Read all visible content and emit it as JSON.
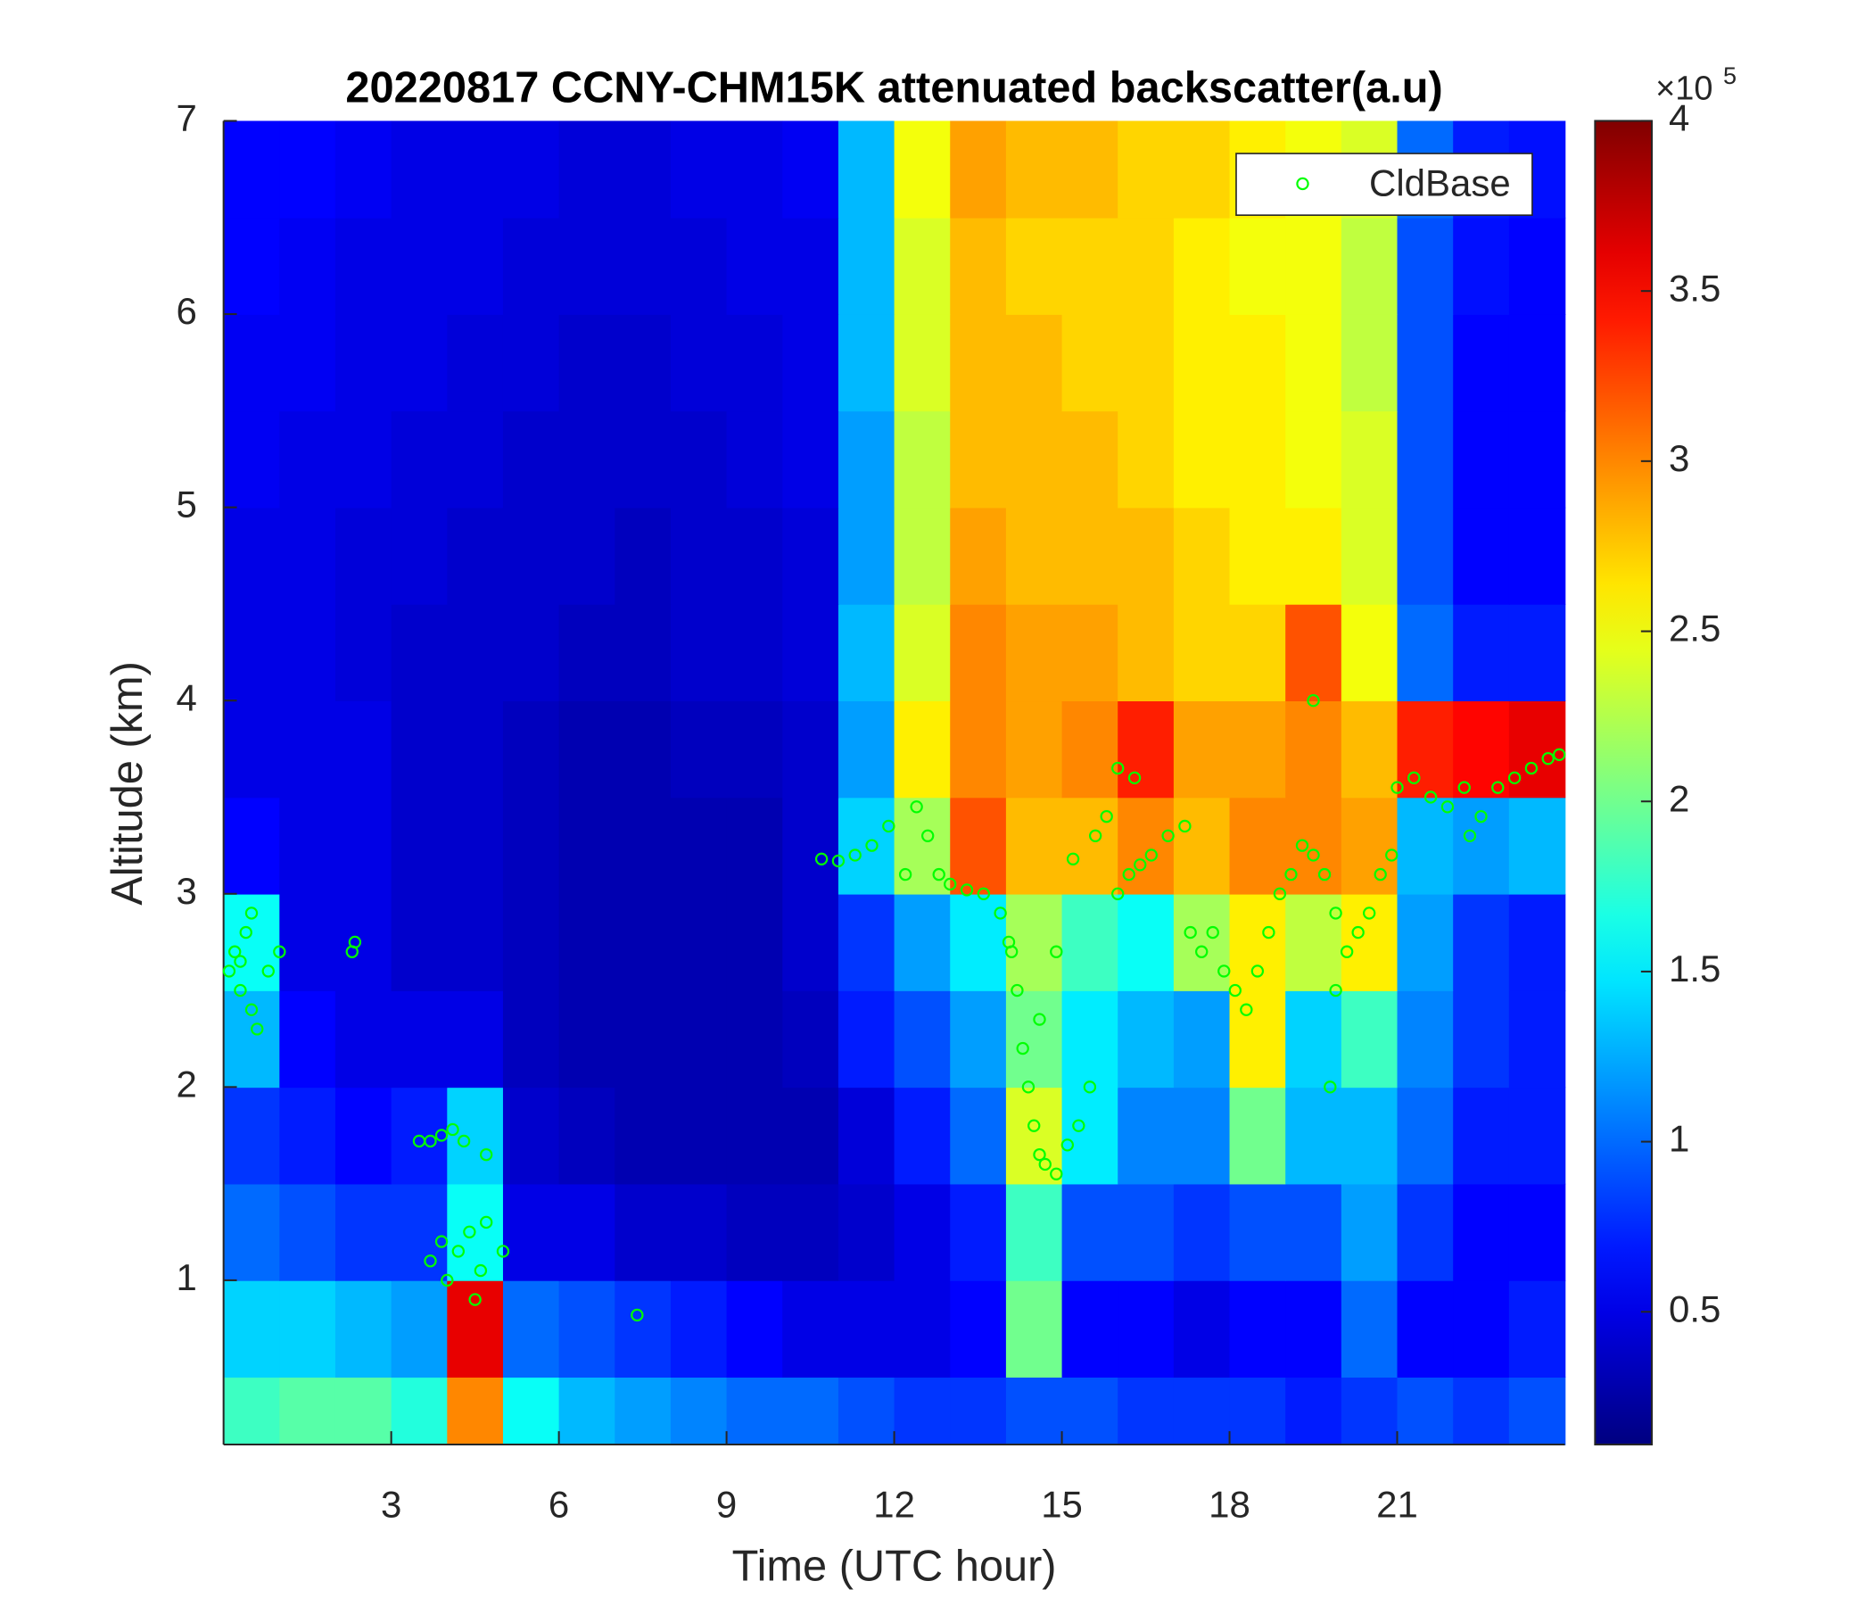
{
  "chart_data": {
    "type": "heatmap",
    "title": "20220817 CCNY-CHM15K attenuated backscatter(a.u)",
    "xlabel": "Time (UTC hour)",
    "ylabel": "Altitude (km)",
    "xlim": [
      0,
      24
    ],
    "ylim": [
      0.15,
      7
    ],
    "xticks": [
      3,
      6,
      9,
      12,
      15,
      18,
      21
    ],
    "yticks": [
      1,
      2,
      3,
      4,
      5,
      6,
      7
    ],
    "x_edges": [
      0,
      1,
      2,
      3,
      4,
      5,
      6,
      7,
      8,
      9,
      10,
      11,
      12,
      13,
      14,
      15,
      16,
      17,
      18,
      19,
      20,
      21,
      22,
      23,
      24
    ],
    "y_edges": [
      0.15,
      0.5,
      1,
      1.5,
      2,
      2.5,
      3,
      3.5,
      4,
      4.5,
      5,
      5.5,
      6,
      6.5,
      7
    ],
    "values": [
      [
        1.8,
        1.9,
        1.9,
        1.7,
        3.0,
        1.6,
        1.3,
        1.2,
        1.1,
        1.0,
        1.0,
        0.9,
        0.8,
        0.8,
        0.9,
        0.9,
        0.8,
        0.8,
        0.8,
        0.7,
        0.8,
        0.9,
        0.8,
        0.9
      ],
      [
        1.4,
        1.4,
        1.3,
        1.2,
        3.6,
        1.0,
        0.9,
        0.8,
        0.7,
        0.6,
        0.5,
        0.5,
        0.5,
        0.6,
        2.0,
        0.6,
        0.6,
        0.5,
        0.6,
        0.6,
        1.0,
        0.6,
        0.6,
        0.7
      ],
      [
        1.0,
        0.9,
        0.8,
        0.8,
        1.6,
        0.5,
        0.5,
        0.4,
        0.4,
        0.35,
        0.35,
        0.4,
        0.5,
        0.7,
        1.8,
        0.9,
        0.9,
        0.8,
        0.9,
        0.9,
        1.2,
        0.8,
        0.6,
        0.6
      ],
      [
        0.8,
        0.7,
        0.6,
        0.7,
        1.4,
        0.4,
        0.35,
        0.3,
        0.3,
        0.3,
        0.3,
        0.45,
        0.7,
        1.0,
        2.4,
        1.5,
        1.1,
        1.1,
        2.0,
        1.3,
        1.3,
        1.0,
        0.7,
        0.7
      ],
      [
        1.3,
        0.6,
        0.5,
        0.5,
        0.5,
        0.35,
        0.3,
        0.3,
        0.3,
        0.3,
        0.35,
        0.7,
        0.9,
        1.2,
        2.0,
        1.5,
        1.3,
        1.2,
        2.6,
        1.4,
        1.8,
        1.1,
        0.8,
        0.7
      ],
      [
        1.6,
        0.5,
        0.5,
        0.4,
        0.4,
        0.35,
        0.3,
        0.3,
        0.3,
        0.3,
        0.4,
        0.8,
        1.2,
        1.5,
        2.2,
        1.8,
        1.6,
        2.2,
        2.6,
        2.3,
        2.6,
        1.2,
        0.8,
        0.7
      ],
      [
        0.6,
        0.5,
        0.5,
        0.4,
        0.4,
        0.35,
        0.3,
        0.3,
        0.3,
        0.3,
        0.4,
        1.4,
        2.2,
        3.2,
        2.8,
        2.8,
        3.0,
        2.8,
        3.0,
        3.0,
        2.9,
        1.3,
        1.2,
        1.3
      ],
      [
        0.5,
        0.5,
        0.5,
        0.4,
        0.4,
        0.35,
        0.3,
        0.3,
        0.35,
        0.35,
        0.4,
        1.2,
        2.6,
        3.0,
        2.9,
        3.0,
        3.4,
        2.9,
        2.9,
        3.0,
        2.8,
        3.4,
        3.5,
        3.6
      ],
      [
        0.5,
        0.5,
        0.45,
        0.4,
        0.4,
        0.4,
        0.35,
        0.35,
        0.4,
        0.4,
        0.45,
        1.3,
        2.4,
        3.0,
        2.9,
        2.9,
        2.8,
        2.7,
        2.7,
        3.2,
        2.5,
        1.0,
        0.7,
        0.7
      ],
      [
        0.5,
        0.5,
        0.45,
        0.45,
        0.4,
        0.4,
        0.4,
        0.35,
        0.4,
        0.4,
        0.45,
        1.2,
        2.3,
        2.9,
        2.8,
        2.8,
        2.8,
        2.7,
        2.6,
        2.6,
        2.4,
        0.9,
        0.6,
        0.6
      ],
      [
        0.55,
        0.5,
        0.5,
        0.45,
        0.45,
        0.4,
        0.4,
        0.4,
        0.4,
        0.45,
        0.5,
        1.2,
        2.3,
        2.8,
        2.8,
        2.8,
        2.7,
        2.6,
        2.6,
        2.5,
        2.4,
        0.9,
        0.6,
        0.6
      ],
      [
        0.55,
        0.55,
        0.5,
        0.5,
        0.45,
        0.45,
        0.4,
        0.4,
        0.45,
        0.45,
        0.5,
        1.3,
        2.4,
        2.8,
        2.8,
        2.7,
        2.7,
        2.6,
        2.6,
        2.5,
        2.3,
        0.9,
        0.6,
        0.6
      ],
      [
        0.6,
        0.55,
        0.5,
        0.5,
        0.5,
        0.45,
        0.45,
        0.45,
        0.45,
        0.5,
        0.5,
        1.3,
        2.4,
        2.8,
        2.7,
        2.7,
        2.7,
        2.6,
        2.5,
        2.5,
        2.3,
        0.9,
        0.65,
        0.6
      ],
      [
        0.6,
        0.6,
        0.55,
        0.5,
        0.5,
        0.5,
        0.45,
        0.45,
        0.5,
        0.5,
        0.55,
        1.3,
        2.5,
        2.9,
        2.8,
        2.8,
        2.7,
        2.7,
        2.6,
        2.5,
        2.4,
        1.0,
        0.7,
        0.65
      ]
    ],
    "colormap": "jet",
    "clim": [
      0.11,
      4
    ],
    "colorbar_ticks": [
      0.5,
      1,
      1.5,
      2,
      2.5,
      3,
      3.5,
      4
    ],
    "colorbar_multiplier": "×10",
    "colorbar_exponent": "5",
    "legend_position": "upper right",
    "overlay": {
      "type": "scatter",
      "name": "CldBase",
      "color": "#00ff00",
      "x": [
        0.1,
        0.2,
        0.3,
        0.4,
        0.5,
        0.6,
        0.5,
        0.3,
        0.8,
        1.0,
        2.3,
        2.35,
        3.5,
        3.7,
        3.9,
        4.1,
        4.3,
        3.7,
        3.9,
        4.0,
        4.2,
        4.4,
        4.6,
        4.7,
        4.5,
        5.0,
        4.7,
        7.4,
        10.7,
        11.0,
        11.3,
        11.6,
        11.9,
        12.2,
        12.4,
        12.6,
        12.8,
        13.0,
        13.3,
        13.6,
        13.9,
        14.1,
        14.2,
        14.3,
        14.4,
        14.5,
        14.6,
        14.7,
        14.9,
        15.1,
        15.3,
        15.5,
        14.05,
        14.6,
        14.9,
        15.2,
        15.6,
        15.8,
        16.0,
        16.3,
        16.0,
        16.2,
        16.4,
        16.6,
        16.9,
        17.2,
        17.3,
        17.5,
        17.7,
        17.9,
        18.1,
        18.3,
        18.5,
        18.7,
        18.9,
        19.1,
        19.3,
        19.5,
        19.7,
        19.9,
        20.1,
        20.3,
        20.5,
        20.7,
        20.9,
        19.5,
        19.8,
        19.9,
        21.0,
        21.3,
        21.6,
        21.9,
        22.2,
        22.5,
        22.8,
        23.1,
        23.4,
        23.7,
        23.9,
        22.3
      ],
      "y": [
        2.6,
        2.7,
        2.5,
        2.8,
        2.4,
        2.3,
        2.9,
        2.65,
        2.6,
        2.7,
        2.7,
        2.75,
        1.72,
        1.72,
        1.75,
        1.78,
        1.72,
        1.1,
        1.2,
        1.0,
        1.15,
        1.25,
        1.05,
        1.3,
        0.9,
        1.15,
        1.65,
        0.82,
        3.18,
        3.17,
        3.2,
        3.25,
        3.35,
        3.1,
        3.45,
        3.3,
        3.1,
        3.05,
        3.02,
        3.0,
        2.9,
        2.7,
        2.5,
        2.2,
        2.0,
        1.8,
        1.65,
        1.6,
        1.55,
        1.7,
        1.8,
        2.0,
        2.75,
        2.35,
        2.7,
        3.18,
        3.3,
        3.4,
        3.65,
        3.6,
        3.0,
        3.1,
        3.15,
        3.2,
        3.3,
        3.35,
        2.8,
        2.7,
        2.8,
        2.6,
        2.5,
        2.4,
        2.6,
        2.8,
        3.0,
        3.1,
        3.25,
        3.2,
        3.1,
        2.9,
        2.7,
        2.8,
        2.9,
        3.1,
        3.2,
        4.0,
        2.0,
        2.5,
        3.55,
        3.6,
        3.5,
        3.45,
        3.55,
        3.4,
        3.55,
        3.6,
        3.65,
        3.7,
        3.72,
        3.3
      ]
    }
  }
}
